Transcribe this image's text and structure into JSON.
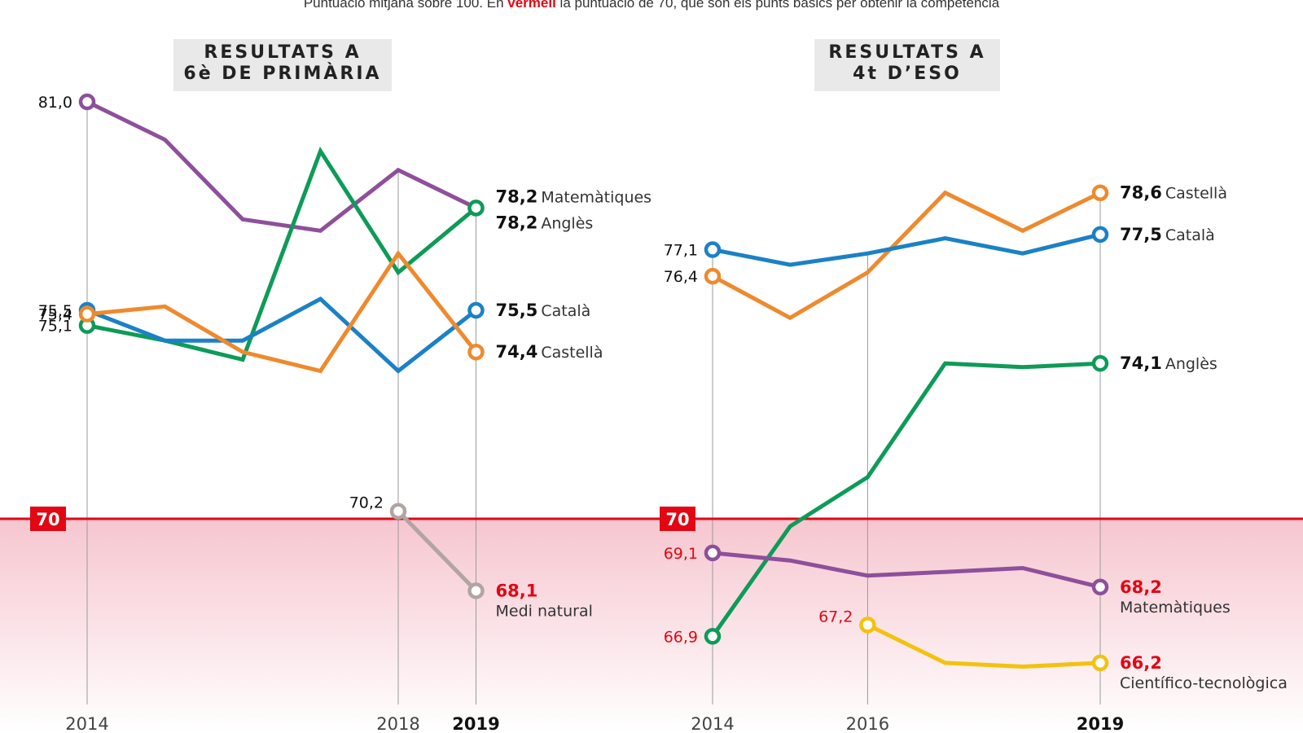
{
  "subtitle": {
    "before": "Puntuació mitjana sobre 100. En ",
    "highlight": "vermell",
    "after": " la puntuació de 70, que són els punts bàsics per obtenir la competència"
  },
  "colors": {
    "purple": "#8e4f9b",
    "green": "#0e9b58",
    "blue": "#1b81c6",
    "orange": "#ee8a2e",
    "grey": "#b0a5a2",
    "yellow": "#f3c20f",
    "threshold": "#e30613",
    "label_dark": "#111111",
    "label_red": "#e30613"
  },
  "chart_data": [
    {
      "type": "line",
      "title_line1": "RESULTATS A",
      "title_line2": "6è DE PRIMÀRIA",
      "x": [
        2014,
        2015,
        2016,
        2017,
        2018,
        2019
      ],
      "xtick_labels": [
        {
          "x": 2014,
          "label": "2014",
          "bold": false
        },
        {
          "x": 2018,
          "label": "2018",
          "bold": false
        },
        {
          "x": 2019,
          "label": "2019",
          "bold": true
        }
      ],
      "threshold": 70,
      "threshold_label": "70",
      "ylim": [
        65,
        82
      ],
      "series": [
        {
          "name": "Matemàtiques",
          "color": "purple",
          "values": [
            81.0,
            80.0,
            77.9,
            77.6,
            79.2,
            78.2
          ],
          "start_label": "81,0",
          "end_value_label": "78,2",
          "end_name": "Matemàtiques",
          "end_inline": true
        },
        {
          "name": "Anglès",
          "color": "green",
          "values": [
            75.1,
            74.7,
            74.2,
            79.7,
            76.5,
            78.2
          ],
          "start_label": "75,1",
          "end_value_label": "78,2",
          "end_name": "Anglès",
          "end_inline": true
        },
        {
          "name": "Català",
          "color": "blue",
          "values": [
            75.5,
            74.7,
            74.7,
            75.8,
            73.9,
            75.5
          ],
          "start_label": "75,5",
          "end_value_label": "75,5",
          "end_name": "Català",
          "end_inline": true
        },
        {
          "name": "Castellà",
          "color": "orange",
          "values": [
            75.4,
            75.6,
            74.4,
            73.9,
            77.0,
            74.4
          ],
          "start_label": "75,4",
          "end_value_label": "74,4",
          "end_name": "Castellà",
          "end_inline": true
        },
        {
          "name": "Medi natural",
          "color": "grey",
          "x": [
            2018,
            2019
          ],
          "values": [
            70.2,
            68.1
          ],
          "start_label": "70,2",
          "end_value_label": "68,1",
          "end_name": "Medi natural",
          "end_inline": false
        }
      ]
    },
    {
      "type": "line",
      "title_line1": "RESULTATS A",
      "title_line2": "4t D’ESO",
      "x": [
        2014,
        2015,
        2016,
        2017,
        2018,
        2019
      ],
      "xtick_labels": [
        {
          "x": 2014,
          "label": "2014",
          "bold": false
        },
        {
          "x": 2016,
          "label": "2016",
          "bold": false
        },
        {
          "x": 2019,
          "label": "2019",
          "bold": true
        }
      ],
      "threshold": 70,
      "threshold_label": "70",
      "ylim": [
        65,
        82
      ],
      "series": [
        {
          "name": "Castellà",
          "color": "orange",
          "values": [
            76.4,
            75.3,
            76.5,
            78.6,
            77.6,
            78.6
          ],
          "start_label": "76,4",
          "end_value_label": "78,6",
          "end_name": "Castellà",
          "end_inline": true
        },
        {
          "name": "Català",
          "color": "blue",
          "values": [
            77.1,
            76.7,
            77.0,
            77.4,
            77.0,
            77.5
          ],
          "start_label": "77,1",
          "end_value_label": "77,5",
          "end_name": "Català",
          "end_inline": true
        },
        {
          "name": "Anglès",
          "color": "green",
          "values": [
            66.9,
            69.8,
            71.1,
            74.1,
            74.0,
            74.1
          ],
          "start_label": "66,9",
          "end_value_label": "74,1",
          "end_name": "Anglès",
          "end_inline": true
        },
        {
          "name": "Matemàtiques",
          "color": "purple",
          "values": [
            69.1,
            68.9,
            68.5,
            68.6,
            68.7,
            68.2
          ],
          "start_label": "69,1",
          "end_value_label": "68,2",
          "end_name": "Matemàtiques",
          "end_inline": false
        },
        {
          "name": "Científico-tecnològica",
          "color": "yellow",
          "x": [
            2016,
            2017,
            2018,
            2019
          ],
          "values": [
            67.2,
            66.2,
            66.1,
            66.2
          ],
          "start_label": "67,2",
          "end_value_label": "66,2",
          "end_name": "Científico-tecnològica",
          "end_inline": false
        }
      ]
    }
  ]
}
